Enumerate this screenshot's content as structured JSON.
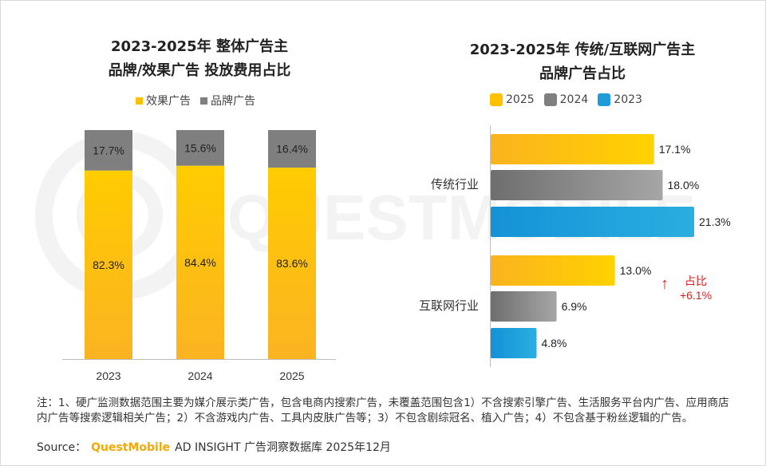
{
  "left_chart": {
    "title_line1": "2023-2025年 整体广告主",
    "title_line2": "品牌/效果广告 投放费用占比",
    "legend": [
      {
        "label": "效果广告",
        "color": "#ffc000"
      },
      {
        "label": "品牌广告",
        "color": "#7f7f7f"
      }
    ]
  },
  "right_chart": {
    "title_line1": "2023-2025年 传统/互联网广告主",
    "title_line2": "品牌广告占比",
    "legend": [
      {
        "label": "2025",
        "color": "#ffc000"
      },
      {
        "label": "2024",
        "color": "#7f7f7f"
      },
      {
        "label": "2023",
        "color": "#1f9bd7"
      }
    ],
    "annotation": {
      "arrow": "↑",
      "line1": "占比",
      "line2": "+6.1%",
      "color": "#e02020"
    }
  },
  "chart_data": [
    {
      "type": "bar",
      "stacked": true,
      "unit": "%",
      "categories": [
        "2023",
        "2024",
        "2025"
      ],
      "series": [
        {
          "name": "效果广告",
          "values": [
            82.3,
            84.4,
            83.6
          ],
          "labels": [
            "82.3%",
            "84.4%",
            "83.6%"
          ],
          "color": "#ffc000"
        },
        {
          "name": "品牌广告",
          "values": [
            17.7,
            15.6,
            16.4
          ],
          "labels": [
            "17.7%",
            "15.6%",
            "16.4%"
          ],
          "color": "#7f7f7f"
        }
      ],
      "ylim": [
        0,
        100
      ],
      "grid": false
    },
    {
      "type": "bar",
      "orientation": "horizontal",
      "unit": "%",
      "categories": [
        "传统行业",
        "互联网行业"
      ],
      "series": [
        {
          "name": "2025",
          "values": [
            17.1,
            13.0
          ],
          "labels": [
            "17.1%",
            "13.0%"
          ],
          "color": "#ffc000"
        },
        {
          "name": "2024",
          "values": [
            18.0,
            6.9
          ],
          "labels": [
            "18.0%",
            "6.9%"
          ],
          "color": "#7f7f7f"
        },
        {
          "name": "2023",
          "values": [
            21.3,
            4.8
          ],
          "labels": [
            "21.3%",
            "4.8%"
          ],
          "color": "#1f9bd7"
        }
      ],
      "xlim": [
        0,
        21.3
      ],
      "grid": false
    }
  ],
  "footnote": {
    "note": "注：1、硬广监测数据范围主要为媒介展示类广告，包含电商内搜索广告，未覆盖范围包含1）不含搜索引擎广告、生活服务平台内广告、应用商店内广告等搜索逻辑相关广告；2）不含游戏内广告、工具内皮肤广告等；3）不包含剧综冠名、植入广告；4）不包含基于粉丝逻辑的广告。",
    "source_prefix": "Source：",
    "source_brand": "QuestMobile",
    "source_text": "AD INSIGHT 广告洞察数据库 2025年12月"
  },
  "watermark": {
    "text": "QUESTMOBILE"
  }
}
